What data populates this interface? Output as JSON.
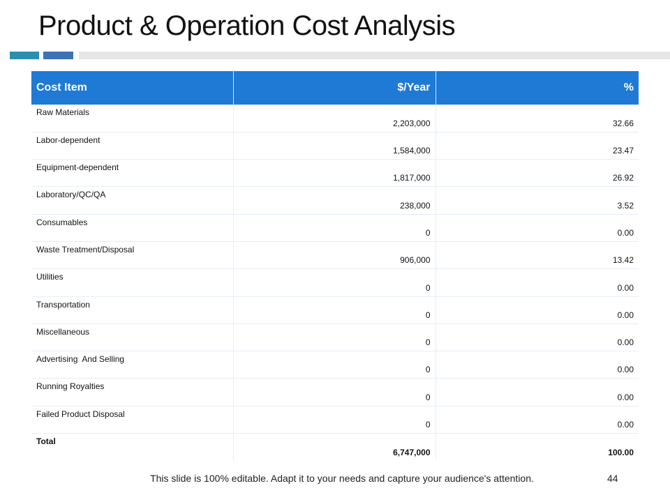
{
  "slide": {
    "title": "Product & Operation Cost Analysis",
    "footer": "This slide is 100% editable. Adapt it to your needs and capture your audience's attention.",
    "page_number": "44"
  },
  "colors": {
    "header_bg": "#1e7ad4",
    "accent_teal": "#2b8fb0",
    "accent_blue": "#3d72b4",
    "accent_grey": "#e6e6e6"
  },
  "table": {
    "headers": [
      "Cost Item",
      "$/Year",
      "%"
    ],
    "rows": [
      {
        "item": "Raw Materials",
        "year": "2,203,000",
        "pct": "32.66"
      },
      {
        "item": "Labor-dependent",
        "year": "1,584,000",
        "pct": "23.47"
      },
      {
        "item": "Equipment-dependent",
        "year": "1,817,000",
        "pct": "26.92"
      },
      {
        "item": "Laboratory/QC/QA",
        "year": "238,000",
        "pct": "3.52"
      },
      {
        "item": "Consumables",
        "year": "0",
        "pct": "0.00"
      },
      {
        "item": "Waste Treatment/Disposal",
        "year": "906,000",
        "pct": "13.42"
      },
      {
        "item": "Utilities",
        "year": "0",
        "pct": "0.00"
      },
      {
        "item": "Transportation",
        "year": "0",
        "pct": "0.00"
      },
      {
        "item": "Miscellaneous",
        "year": "0",
        "pct": "0.00"
      },
      {
        "item": "Advertising  And Selling",
        "year": "0",
        "pct": "0.00"
      },
      {
        "item": "Running Royalties",
        "year": "0",
        "pct": "0.00"
      },
      {
        "item": "Failed Product Disposal",
        "year": "0",
        "pct": "0.00"
      },
      {
        "item": "Total",
        "year": "6,747,000",
        "pct": "100.00"
      }
    ]
  }
}
